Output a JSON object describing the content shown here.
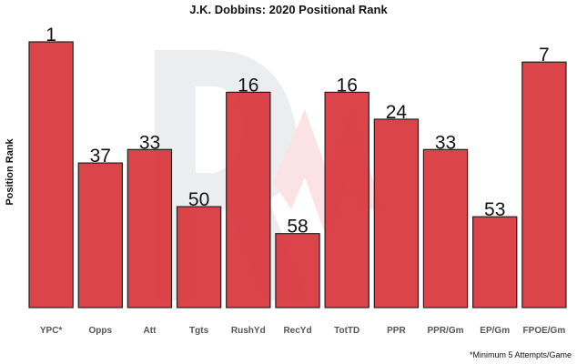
{
  "chart_data": {
    "type": "bar",
    "title": "J.K. Dobbins: 2020 Positional Rank",
    "ylabel": "Position Rank",
    "xlabel": "",
    "footnote": "*Minimum 5 Attempts/Game",
    "categories": [
      "YPC*",
      "Opps",
      "Att",
      "Tgts",
      "RushYd",
      "RecYd",
      "TotTD",
      "PPR",
      "PPR/Gm",
      "EP/Gm",
      "FPOE/Gm"
    ],
    "values": [
      1,
      37,
      33,
      50,
      16,
      58,
      16,
      24,
      33,
      53,
      7
    ],
    "ylim": [
      0,
      80
    ],
    "y_inverted": true,
    "grid": false,
    "bar_color": "#d93a3f"
  }
}
